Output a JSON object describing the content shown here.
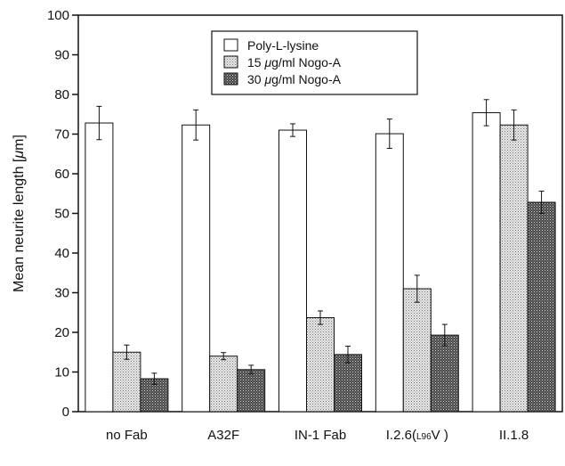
{
  "chart_data": {
    "type": "bar",
    "title": "",
    "xlabel": "",
    "ylabel": "Mean neurite length [μm]",
    "ylim": [
      0,
      100
    ],
    "yticks": [
      0,
      10,
      20,
      30,
      40,
      50,
      60,
      70,
      80,
      90,
      100
    ],
    "categories": [
      "no Fab",
      "A32F",
      "IN-1  Fab",
      "I.2.6(L96V )",
      "II.1.8"
    ],
    "categories_rich": [
      [
        {
          "t": "no Fab"
        }
      ],
      [
        {
          "t": "A32F"
        }
      ],
      [
        {
          "t": "IN-1  Fab"
        }
      ],
      [
        {
          "t": "I.2.6("
        },
        {
          "t": "L96",
          "small": true
        },
        {
          "t": "V )"
        }
      ],
      [
        {
          "t": "II.1.8"
        }
      ]
    ],
    "legend_position": "top-center",
    "grid": false,
    "series": [
      {
        "name": "Poly-L-lysine",
        "legend_parts": [
          {
            "t": "Poly-L-lysine"
          }
        ],
        "fill": "#ffffff",
        "pattern": "none",
        "values": [
          72.8,
          72.3,
          71.0,
          70.1,
          75.4
        ],
        "errors": [
          4.2,
          3.8,
          1.6,
          3.7,
          3.3
        ]
      },
      {
        "name": "15 μg/ml Nogo-A",
        "legend_parts": [
          {
            "t": "15  "
          },
          {
            "t": "μ",
            "italic": true
          },
          {
            "t": "g/ml  Nogo-A"
          }
        ],
        "fill": "#d4d4d4",
        "pattern": "dots-light",
        "values": [
          15.0,
          14.0,
          23.7,
          31.0,
          72.3
        ],
        "errors": [
          1.8,
          0.9,
          1.7,
          3.4,
          3.8
        ]
      },
      {
        "name": "30 μg/ml Nogo-A",
        "legend_parts": [
          {
            "t": "30  "
          },
          {
            "t": "μ",
            "italic": true
          },
          {
            "t": "g/ml  Nogo-A"
          }
        ],
        "fill": "#6a6a6a",
        "pattern": "dots-dark",
        "values": [
          8.3,
          10.6,
          14.4,
          19.3,
          52.8
        ],
        "errors": [
          1.4,
          1.1,
          2.1,
          2.7,
          2.8
        ]
      }
    ]
  }
}
